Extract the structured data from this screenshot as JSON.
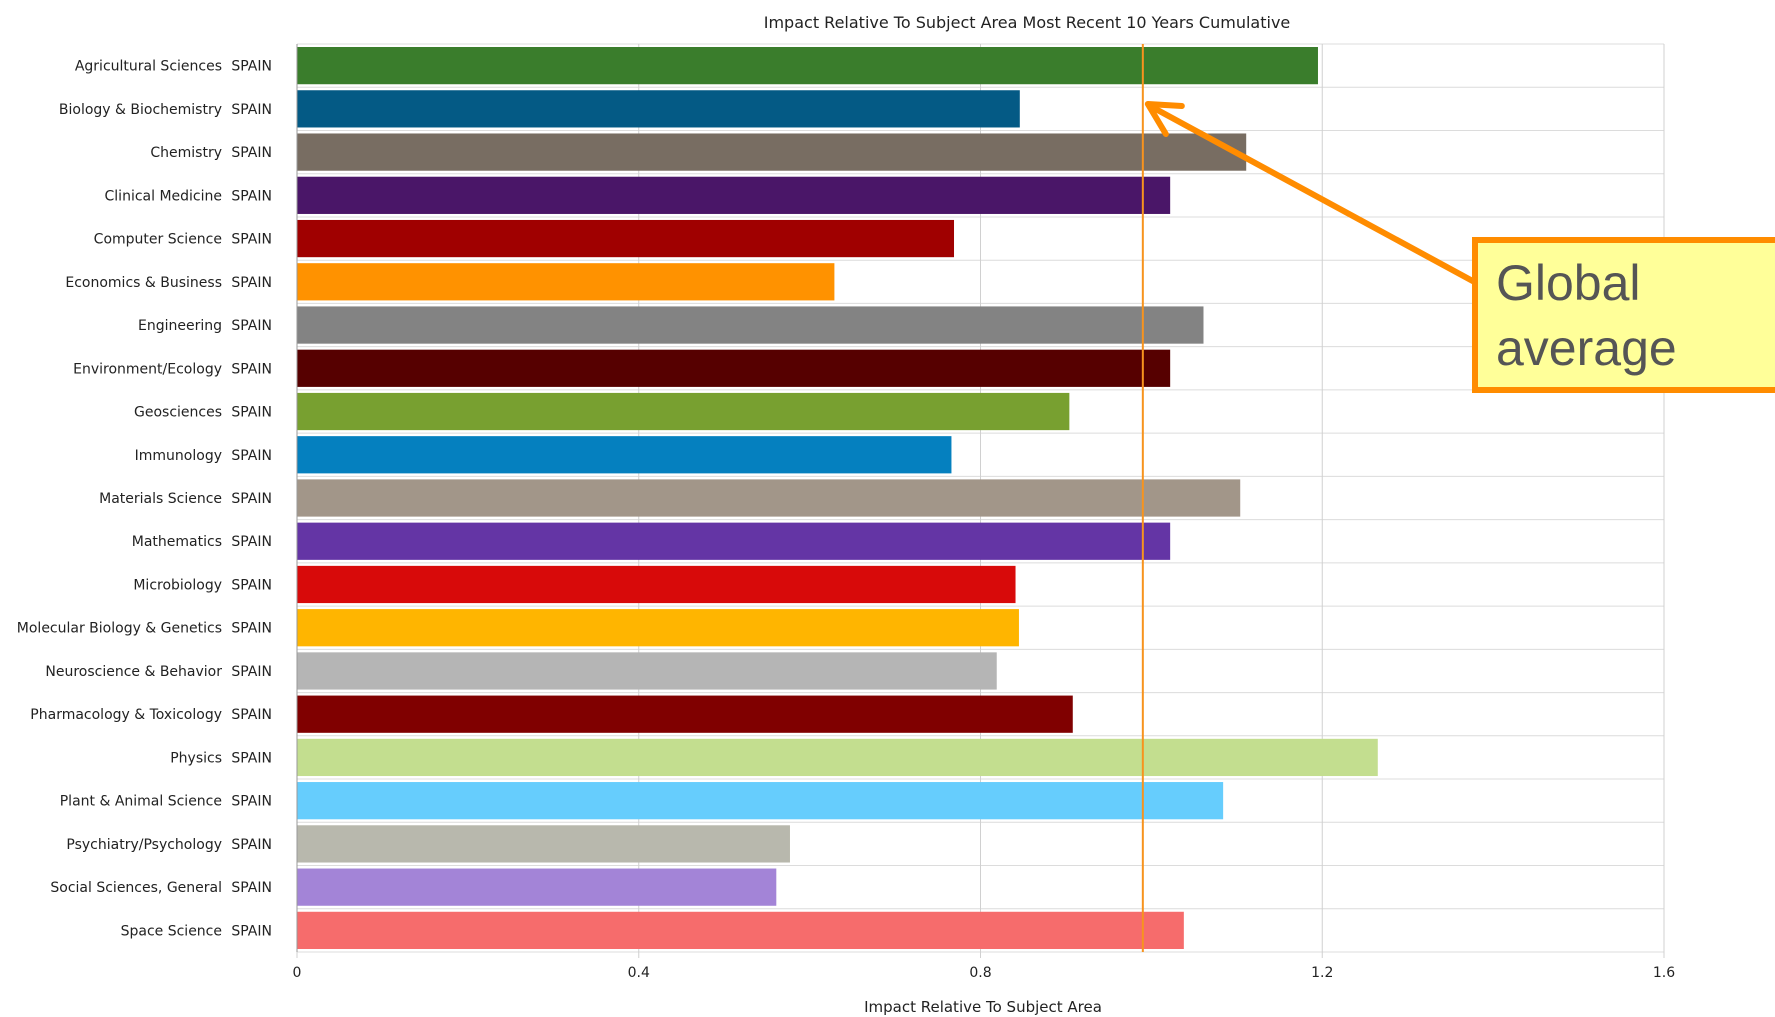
{
  "chart_data": {
    "type": "bar",
    "orientation": "horizontal",
    "title": "Impact Relative To Subject Area Most Recent 10 Years Cumulative",
    "xlabel": "Impact Relative To Subject Area",
    "ylabel": "",
    "xlim": [
      0,
      1.6
    ],
    "xticks": [
      "0",
      "0.4",
      "0.8",
      "1.2",
      "1.6"
    ],
    "grid": true,
    "country_label": "SPAIN",
    "categories": [
      "Agricultural Sciences",
      "Biology & Biochemistry",
      "Chemistry",
      "Clinical Medicine",
      "Computer Science",
      "Economics & Business",
      "Engineering",
      "Environment/Ecology",
      "Geosciences",
      "Immunology",
      "Materials Science",
      "Mathematics",
      "Microbiology",
      "Molecular Biology & Genetics",
      "Neuroscience & Behavior",
      "Pharmacology & Toxicology",
      "Physics",
      "Plant & Animal Science",
      "Psychiatry/Psychology",
      "Social Sciences, General",
      "Space Science"
    ],
    "values": [
      1.195,
      0.846,
      1.111,
      1.022,
      0.769,
      0.629,
      1.061,
      1.022,
      0.904,
      0.766,
      1.104,
      1.022,
      0.841,
      0.845,
      0.819,
      0.908,
      1.265,
      1.084,
      0.577,
      0.561,
      1.038
    ],
    "colors": [
      "#3a7d2c",
      "#045a85",
      "#786d62",
      "#4a1668",
      "#a00000",
      "#ff9200",
      "#838383",
      "#560000",
      "#78a030",
      "#0580bf",
      "#a29689",
      "#6435a5",
      "#d80a0a",
      "#ffb500",
      "#b5b5b5",
      "#800000",
      "#c3de8f",
      "#66cdfd",
      "#b8b8ad",
      "#a384d7",
      "#f66c6c"
    ],
    "reference_line": {
      "value": 0.99,
      "color": "#f7931e"
    },
    "annotation": {
      "lines": [
        "Global",
        "average"
      ],
      "box_fill": "#ffff99",
      "border_color": "#ff8c00",
      "arrow_color": "#ff8c00"
    }
  }
}
